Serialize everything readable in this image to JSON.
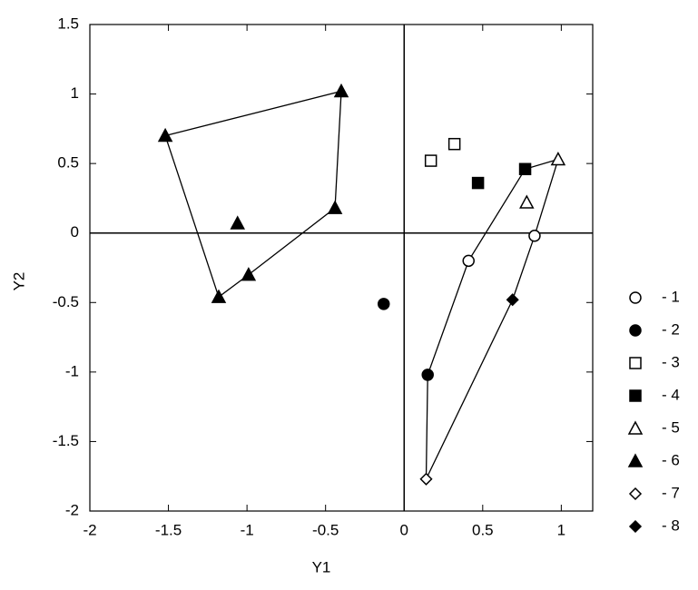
{
  "chart_data": {
    "type": "scatter",
    "xlabel": "Y1",
    "ylabel": "Y2",
    "xlim": [
      -2,
      1.2
    ],
    "ylim": [
      -2,
      1.5
    ],
    "xticks": [
      -2,
      -1.5,
      -1,
      -0.5,
      0,
      0.5,
      1
    ],
    "yticks": [
      -2,
      -1.5,
      -1,
      -0.5,
      0,
      0.5,
      1,
      1.5
    ],
    "legend": "right",
    "series": [
      {
        "name": "- 1",
        "color": "#000000",
        "marker": "circle",
        "filled": false,
        "x": [
          0.41,
          0.83
        ],
        "values": [
          -0.2,
          -0.02
        ]
      },
      {
        "name": "- 2",
        "color": "#000000",
        "marker": "circle",
        "filled": true,
        "x": [
          -0.13,
          0.15
        ],
        "values": [
          -0.51,
          -1.02
        ]
      },
      {
        "name": "- 3",
        "color": "#000000",
        "marker": "square",
        "filled": false,
        "x": [
          0.17,
          0.32
        ],
        "values": [
          0.52,
          0.64
        ]
      },
      {
        "name": "- 4",
        "color": "#000000",
        "marker": "square",
        "filled": true,
        "x": [
          0.47,
          0.77
        ],
        "values": [
          0.36,
          0.46
        ]
      },
      {
        "name": "- 5",
        "color": "#000000",
        "marker": "triangle",
        "filled": false,
        "x": [
          0.98,
          0.78
        ],
        "values": [
          0.53,
          0.22
        ]
      },
      {
        "name": "- 6",
        "color": "#000000",
        "marker": "triangle",
        "filled": true,
        "x": [
          -1.52,
          -0.4,
          -0.44,
          -0.99,
          -1.18,
          -1.06
        ],
        "values": [
          0.7,
          1.02,
          0.18,
          -0.3,
          -0.46,
          0.07
        ]
      },
      {
        "name": "- 7",
        "color": "#000000",
        "marker": "diamond",
        "filled": false,
        "x": [
          0.14
        ],
        "values": [
          -1.77
        ]
      },
      {
        "name": "- 8",
        "color": "#000000",
        "marker": "diamond",
        "filled": true,
        "x": [
          0.69
        ],
        "values": [
          -0.48
        ]
      }
    ]
  }
}
